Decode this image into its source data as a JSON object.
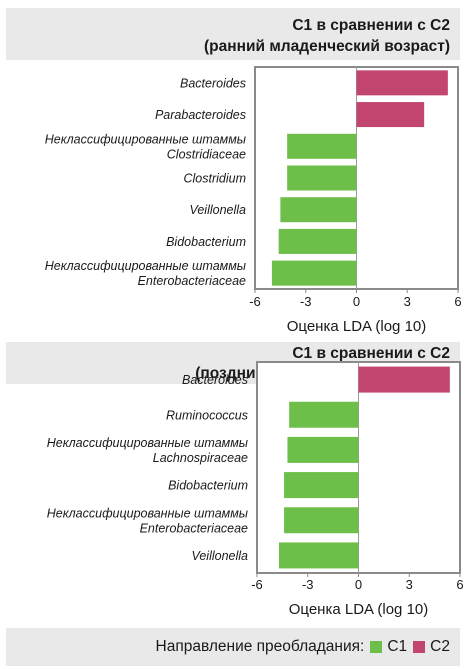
{
  "colors": {
    "C1": "#6dbf4a",
    "C2": "#c2456f"
  },
  "legend": {
    "label": "Направление преобладания:",
    "c1": "C1",
    "c2": "C2"
  },
  "chart_data": [
    {
      "type": "bar",
      "orientation": "horizontal",
      "title_line1": "C1 в сравнении с C2",
      "title_line2": "(ранний младенческий возраст)",
      "xlabel": "Оценка LDA (log 10)",
      "xlim": [
        -6,
        6
      ],
      "xticks": [
        "-6",
        "-3",
        "0",
        "3",
        "6"
      ],
      "categories": [
        [
          "Bacteroides"
        ],
        [
          "Parabacteroides"
        ],
        [
          "Неклассифицированные штаммы",
          "Clostridiaceae"
        ],
        [
          "Clostridium"
        ],
        [
          "Veillonella"
        ],
        [
          "Bidobacterium"
        ],
        [
          "Неклассифицированные штаммы",
          "Enterobacteriaceae"
        ]
      ],
      "values": [
        5.4,
        4.0,
        -4.1,
        -4.1,
        -4.5,
        -4.6,
        -5.0
      ],
      "groups": [
        "C2",
        "C2",
        "C1",
        "C1",
        "C1",
        "C1",
        "C1"
      ]
    },
    {
      "type": "bar",
      "orientation": "horizontal",
      "title_line1": "C1 в сравнении с C2",
      "title_line2": "(поздний младенческий возраст)",
      "xlabel": "Оценка LDA (log 10)",
      "xlim": [
        -6,
        6
      ],
      "xticks": [
        "-6",
        "-3",
        "0",
        "3",
        "6"
      ],
      "categories": [
        [
          "Bacteroides"
        ],
        [
          "Ruminococcus"
        ],
        [
          "Неклассифицированные штаммы",
          "Lachnospiraceae"
        ],
        [
          "Bidobacterium"
        ],
        [
          "Неклассифицированные штаммы",
          "Enterobacteriaceae"
        ],
        [
          "Veillonella"
        ]
      ],
      "values": [
        5.4,
        -4.1,
        -4.2,
        -4.4,
        -4.4,
        -4.7
      ],
      "groups": [
        "C2",
        "C1",
        "C1",
        "C1",
        "C1",
        "C1"
      ]
    }
  ]
}
